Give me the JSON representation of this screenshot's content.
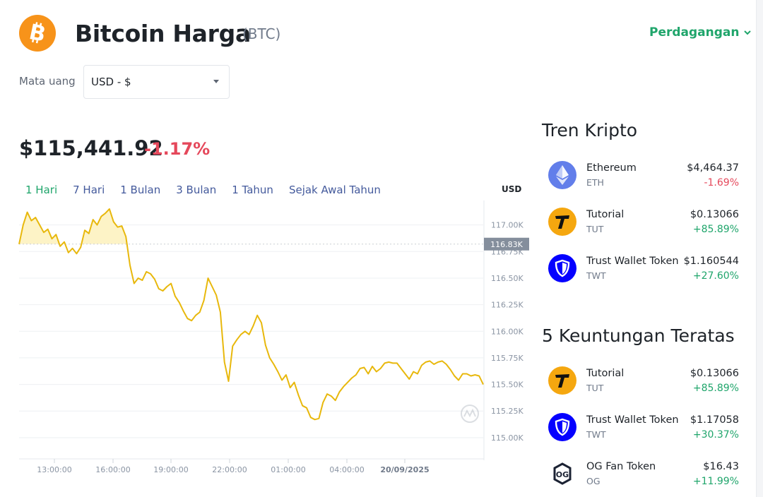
{
  "header": {
    "title": "Bitcoin Harga",
    "symbol": "(BTC)",
    "trade_label": "Perdagangan"
  },
  "currency": {
    "label": "Mata uang",
    "selected": "USD - $"
  },
  "price": {
    "value": "$115,441.92",
    "change": "-1.17%"
  },
  "tabs": [
    "1 Hari",
    "7 Hari",
    "1 Bulan",
    "3 Bulan",
    "1 Tahun",
    "Sejak Awal Tahun"
  ],
  "active_tab": "1 Hari",
  "chart_data": {
    "type": "line",
    "title": "",
    "currency_label": "USD",
    "current_marker": "116.83K",
    "y_ticks": [
      "117.00K",
      "116.75K",
      "116.50K",
      "116.25K",
      "116.00K",
      "115.75K",
      "115.50K",
      "115.25K",
      "115.00K"
    ],
    "y_tick_values": [
      117000,
      116750,
      116500,
      116250,
      116000,
      115750,
      115500,
      115250,
      115000
    ],
    "x_ticks": [
      "13:00:00",
      "16:00:00",
      "19:00:00",
      "22:00:00",
      "01:00:00",
      "04:00:00",
      "20/09/2025"
    ],
    "ylim": [
      114800,
      117230
    ],
    "line_color": "#e8b80c",
    "series": [
      {
        "values": [
          116820,
          117000,
          117120,
          117040,
          117070,
          117000,
          116930,
          116960,
          116870,
          116910,
          116800,
          116840,
          116740,
          116780,
          116730,
          116790,
          116950,
          116920,
          117050,
          117000,
          117080,
          117110,
          117150,
          117030,
          116980,
          116990,
          116890,
          116620,
          116450,
          116500,
          116480,
          116560,
          116540,
          116490,
          116400,
          116380,
          116420,
          116450,
          116330,
          116270,
          116190,
          116120,
          116100,
          116150,
          116180,
          116290,
          116500,
          116420,
          116340,
          116180,
          115710,
          115530,
          115860,
          115920,
          115970,
          116000,
          115970,
          116050,
          116150,
          116080,
          115870,
          115750,
          115690,
          115620,
          115540,
          115590,
          115470,
          115520,
          115400,
          115300,
          115280,
          115190,
          115170,
          115180,
          115330,
          115410,
          115390,
          115350,
          115430,
          115480,
          115520,
          115560,
          115590,
          115650,
          115660,
          115600,
          115670,
          115620,
          115650,
          115700,
          115710,
          115700,
          115700,
          115650,
          115600,
          115550,
          115620,
          115600,
          115680,
          115710,
          115720,
          115690,
          115710,
          115720,
          115690,
          115640,
          115580,
          115540,
          115600,
          115600,
          115580,
          115590,
          115580,
          115500
        ]
      }
    ],
    "colors": {
      "line": "#e8b80c",
      "fill": "#fdf3c6",
      "marker_bg": "#848e9c"
    }
  },
  "trending": {
    "title": "Tren Kripto",
    "items": [
      {
        "name": "Ethereum",
        "symbol": "ETH",
        "price": "$4,464.37",
        "change": "-1.69%",
        "direction": "down",
        "icon": "ethereum-icon"
      },
      {
        "name": "Tutorial",
        "symbol": "TUT",
        "price": "$0.13066",
        "change": "+85.89%",
        "direction": "up",
        "icon": "tutorial-icon"
      },
      {
        "name": "Trust Wallet Token",
        "symbol": "TWT",
        "price": "$1.160544",
        "change": "+27.60%",
        "direction": "up",
        "icon": "trust-wallet-icon"
      }
    ]
  },
  "gainers": {
    "title": "5 Keuntungan Teratas",
    "items": [
      {
        "name": "Tutorial",
        "symbol": "TUT",
        "price": "$0.13066",
        "change": "+85.89%",
        "direction": "up",
        "icon": "tutorial-icon"
      },
      {
        "name": "Trust Wallet Token",
        "symbol": "TWT",
        "price": "$1.17058",
        "change": "+30.37%",
        "direction": "up",
        "icon": "trust-wallet-icon"
      },
      {
        "name": "OG Fan Token",
        "symbol": "OG",
        "price": "$16.43",
        "change": "+11.99%",
        "direction": "up",
        "icon": "og-icon"
      }
    ]
  },
  "brand_colors": {
    "bitcoin": "#f7931a",
    "up": "#1fa56b",
    "down": "#e5485b"
  }
}
